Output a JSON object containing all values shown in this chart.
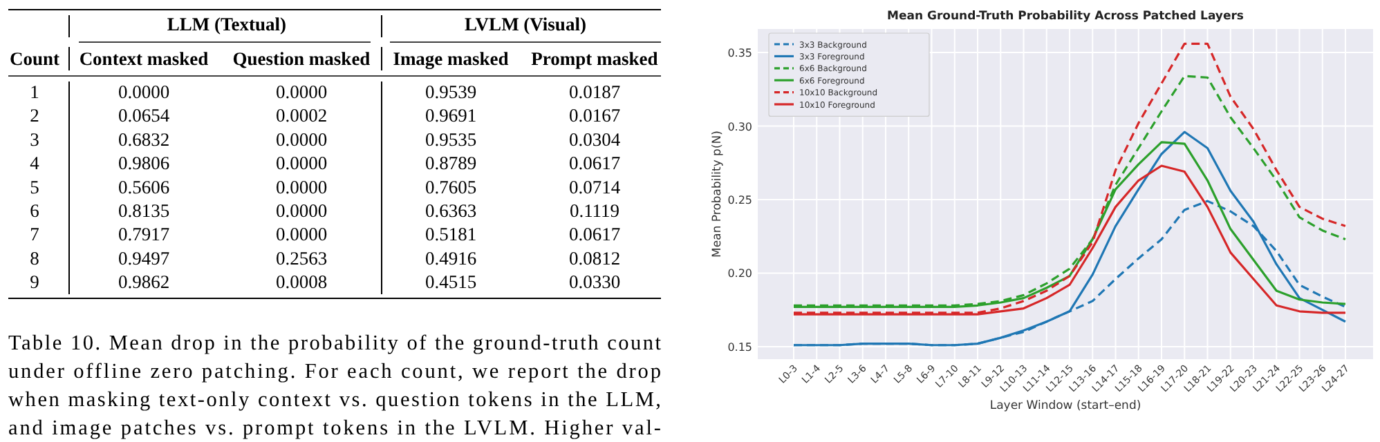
{
  "chart_data": [
    {
      "type": "heatmap",
      "ylabel": "Count",
      "categories": [
        "Context masked",
        "Question masked",
        "Image masked",
        "Prompt masked"
      ],
      "y_categories": [
        "1",
        "2",
        "3",
        "4",
        "5",
        "6",
        "7",
        "8",
        "9"
      ],
      "cells": [
        [
          0,
          0,
          0.9539,
          0.0187
        ],
        [
          0.0654,
          0.0002,
          0.9691,
          0.0167
        ],
        [
          0.6832,
          0,
          0.9535,
          0.0304
        ],
        [
          0.9806,
          0,
          0.8789,
          0.0617
        ],
        [
          0.5606,
          0,
          0.7605,
          0.0714
        ],
        [
          0.8135,
          0,
          0.6363,
          0.1119
        ],
        [
          0.7917,
          0,
          0.5181,
          0.0617
        ],
        [
          0.9497,
          0.2563,
          0.4916,
          0.0812
        ],
        [
          0.9862,
          0.0008,
          0.4515,
          0.033
        ]
      ],
      "cell_labels": [
        [
          "0.0000",
          "0.0000",
          "0.9539",
          "0.0187"
        ],
        [
          "0.0654",
          "0.0002",
          "0.9691",
          "0.0167"
        ],
        [
          "0.6832",
          "0.0000",
          "0.9535",
          "0.0304"
        ],
        [
          "0.9806",
          "0.0000",
          "0.8789",
          "0.0617"
        ],
        [
          "0.5606",
          "0.0000",
          "0.7605",
          "0.0714"
        ],
        [
          "0.8135",
          "0.0000",
          "0.6363",
          "0.1119"
        ],
        [
          "0.7917",
          "0.0000",
          "0.5181",
          "0.0617"
        ],
        [
          "0.9497",
          "0.2563",
          "0.4916",
          "0.0812"
        ],
        [
          "0.9862",
          "0.0008",
          "0.4515",
          "0.0330"
        ]
      ],
      "annotations": [
        "LLM (Textual)",
        "LVLM (Visual)",
        "Table 10. Mean drop in the probability of the ground-truth count",
        "under offline zero patching. For each count, we report the drop",
        "when masking text-only context vs. question tokens in the LLM,",
        "and image patches vs. prompt tokens in the LVLM. Higher val-"
      ]
    },
    {
      "type": "line",
      "title": "Mean Ground-Truth Probability Across Patched Layers",
      "xlabel": "Layer Window (start–end)",
      "ylabel": "Mean Probability  p(N)",
      "categories": [
        "L0-3",
        "L1-4",
        "L2-5",
        "L3-6",
        "L4-7",
        "L5-8",
        "L6-9",
        "L7-10",
        "L8-11",
        "L9-12",
        "L10-13",
        "L11-14",
        "L12-15",
        "L13-16",
        "L14-17",
        "L15-18",
        "L16-19",
        "L17-20",
        "L18-21",
        "L19-22",
        "L20-23",
        "L21-24",
        "L22-25",
        "L23-26",
        "L24-27"
      ],
      "ylim": [
        0.1415,
        0.366
      ],
      "yticks": [
        {
          "value": 0.15,
          "label": "0.15"
        },
        {
          "value": 0.2,
          "label": "0.20"
        },
        {
          "value": 0.25,
          "label": "0.25"
        },
        {
          "value": 0.3,
          "label": "0.30"
        },
        {
          "value": 0.35,
          "label": "0.35"
        }
      ],
      "grid": true,
      "legend": "top left",
      "marker": "none",
      "series": [
        {
          "name": "3x3 Background",
          "color": "#1f77b4",
          "line_style": "dashed",
          "values": [
            0.151,
            0.151,
            0.151,
            0.152,
            0.152,
            0.152,
            0.151,
            0.151,
            0.152,
            0.156,
            0.16,
            0.167,
            0.174,
            0.181,
            0.196,
            0.21,
            0.223,
            0.243,
            0.249,
            0.242,
            0.232,
            0.215,
            0.192,
            0.184,
            0.177
          ]
        },
        {
          "name": "3x3 Foreground",
          "color": "#1f77b4",
          "line_style": "solid",
          "values": [
            0.151,
            0.151,
            0.151,
            0.152,
            0.152,
            0.152,
            0.151,
            0.151,
            0.152,
            0.156,
            0.161,
            0.167,
            0.174,
            0.199,
            0.232,
            0.257,
            0.281,
            0.296,
            0.285,
            0.256,
            0.235,
            0.206,
            0.183,
            0.175,
            0.167
          ]
        },
        {
          "name": "6x6 Background",
          "color": "#2ca02c",
          "line_style": "dashed",
          "values": [
            0.178,
            0.178,
            0.178,
            0.178,
            0.178,
            0.178,
            0.178,
            0.178,
            0.179,
            0.181,
            0.185,
            0.193,
            0.203,
            0.223,
            0.26,
            0.285,
            0.31,
            0.334,
            0.333,
            0.306,
            0.285,
            0.263,
            0.238,
            0.229,
            0.223
          ]
        },
        {
          "name": "6x6 Foreground",
          "color": "#2ca02c",
          "line_style": "solid",
          "values": [
            0.177,
            0.177,
            0.177,
            0.177,
            0.177,
            0.177,
            0.177,
            0.177,
            0.178,
            0.18,
            0.183,
            0.19,
            0.198,
            0.223,
            0.257,
            0.274,
            0.289,
            0.288,
            0.263,
            0.23,
            0.209,
            0.188,
            0.182,
            0.18,
            0.179
          ]
        },
        {
          "name": "10x10 Background",
          "color": "#d62728",
          "line_style": "dashed",
          "values": [
            0.173,
            0.173,
            0.173,
            0.173,
            0.173,
            0.173,
            0.173,
            0.173,
            0.173,
            0.176,
            0.181,
            0.188,
            0.198,
            0.221,
            0.27,
            0.302,
            0.329,
            0.356,
            0.356,
            0.32,
            0.298,
            0.27,
            0.245,
            0.237,
            0.232
          ]
        },
        {
          "name": "10x10 Foreground",
          "color": "#d62728",
          "line_style": "solid",
          "values": [
            0.172,
            0.172,
            0.172,
            0.172,
            0.172,
            0.172,
            0.172,
            0.172,
            0.172,
            0.174,
            0.176,
            0.183,
            0.192,
            0.217,
            0.245,
            0.263,
            0.273,
            0.269,
            0.245,
            0.214,
            0.196,
            0.178,
            0.174,
            0.173,
            0.173
          ]
        }
      ]
    }
  ]
}
